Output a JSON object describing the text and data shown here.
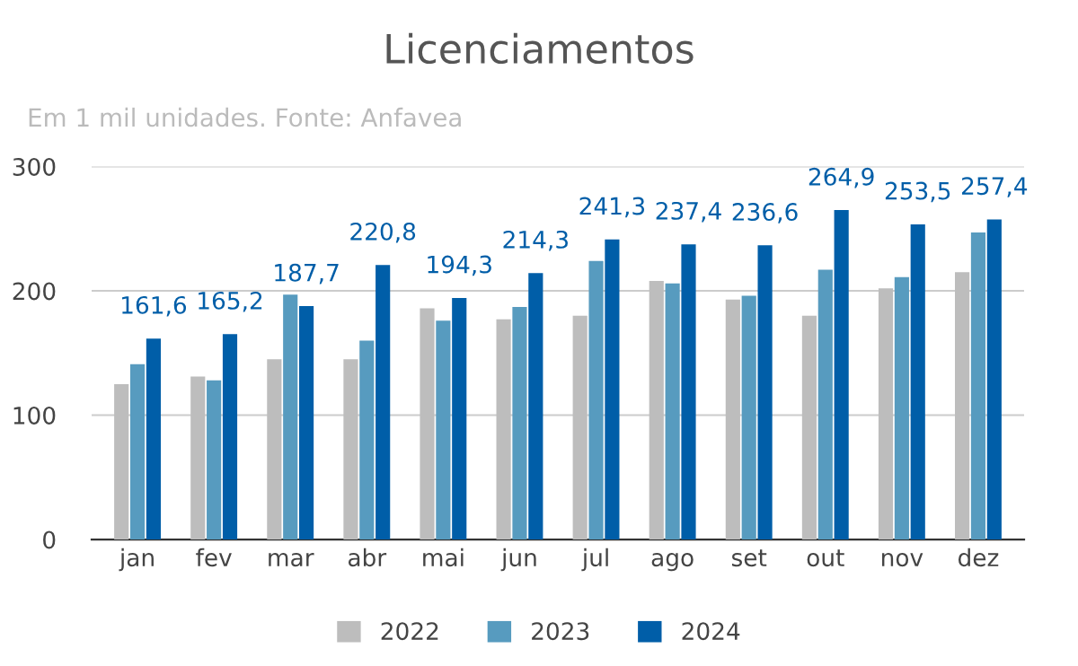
{
  "chart_data": {
    "type": "bar",
    "title": "Licenciamentos",
    "subtitle": "Em 1 mil unidades. Fonte: Anfavea",
    "categories": [
      "jan",
      "fev",
      "mar",
      "abr",
      "mai",
      "jun",
      "jul",
      "ago",
      "set",
      "out",
      "nov",
      "dez"
    ],
    "series": [
      {
        "name": "2022",
        "color": "#bdbdbd",
        "values": [
          125,
          131,
          145,
          145,
          186,
          177,
          180,
          208,
          193,
          180,
          202,
          215
        ]
      },
      {
        "name": "2023",
        "color": "#579bbf",
        "values": [
          141,
          128,
          197,
          160,
          176,
          187,
          224,
          206,
          196,
          217,
          211,
          247
        ]
      },
      {
        "name": "2024",
        "color": "#005ea8",
        "values": [
          161.6,
          165.2,
          187.7,
          220.8,
          194.3,
          214.3,
          241.3,
          237.4,
          236.6,
          264.9,
          253.5,
          257.4
        ],
        "value_labels": [
          "161,6",
          "165,2",
          "187,7",
          "220,8",
          "194,3",
          "214,3",
          "241,3",
          "237,4",
          "236,6",
          "264,9",
          "253,5",
          "257,4"
        ]
      }
    ],
    "ylim": [
      0,
      300
    ],
    "yticks": [
      0,
      100,
      200,
      300
    ],
    "grid": "y",
    "legend": "bottom"
  }
}
